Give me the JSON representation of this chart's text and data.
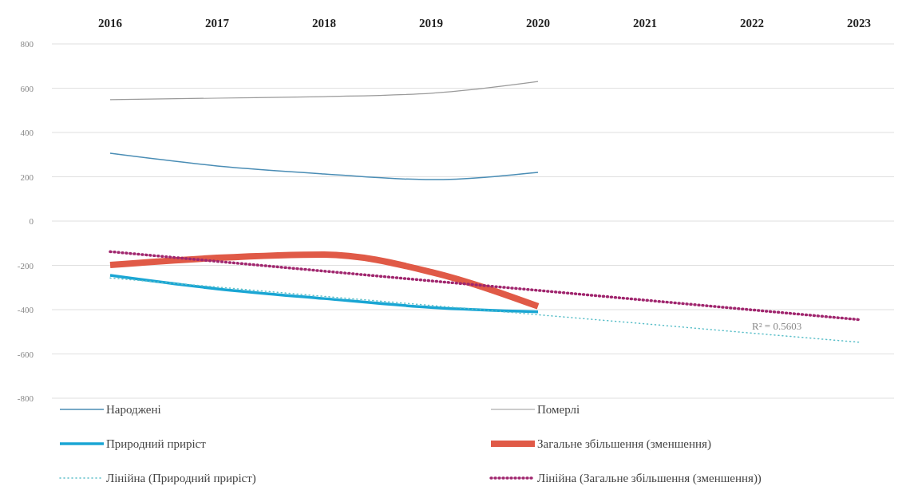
{
  "chart_data": {
    "type": "line",
    "categories": [
      "2016",
      "2017",
      "2018",
      "2019",
      "2020",
      "2021",
      "2022",
      "2023"
    ],
    "ylim": [
      -800,
      800
    ],
    "yticks": [
      -800,
      -600,
      -400,
      -200,
      0,
      200,
      400,
      600,
      800
    ],
    "grid": "y",
    "legend": "bottom",
    "marker": "none",
    "series": [
      {
        "name": "Народжені",
        "color": "#4a8db5",
        "values": [
          306,
          249,
          213,
          187,
          220,
          null,
          null,
          null
        ]
      },
      {
        "name": "Померлі",
        "color": "#9a9a9a",
        "values": [
          548,
          555,
          562,
          577,
          630,
          null,
          null,
          null
        ]
      },
      {
        "name": "Природний приріст",
        "color": "#1aa6d4",
        "values": [
          -245,
          -306,
          -350,
          -390,
          -410,
          null,
          null,
          null
        ]
      },
      {
        "name": "Загальне збільшення (зменшення)",
        "color": "#e05a47",
        "values": [
          -198,
          -166,
          -151,
          -230,
          -385,
          null,
          null,
          null
        ]
      },
      {
        "name": "Лінійна (Природний приріст)",
        "color": "#5bbfc9",
        "line_style": "dotted",
        "values": [
          -257,
          -298,
          -340,
          -381,
          -423,
          -464,
          -506,
          -547
        ]
      },
      {
        "name": "Лінійна (Загальне збільшення (зменшення))",
        "color": "#a0266e",
        "line_style": "dotted",
        "values": [
          -138,
          -182,
          -226,
          -270,
          -313,
          -357,
          -401,
          -445
        ]
      }
    ],
    "annotations": [
      {
        "text": "R² = 0.5603",
        "x": "2022",
        "y": -490
      }
    ]
  }
}
